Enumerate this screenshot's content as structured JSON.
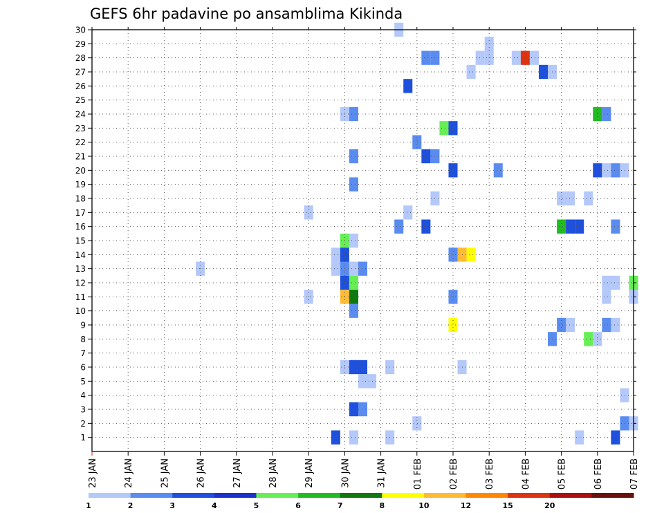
{
  "chart_data": {
    "type": "heatmap",
    "title": "GEFS 6hr padavine po ansamblima Kikinda",
    "xlabel": "",
    "ylabel": "",
    "x_range": [
      "23 JAN",
      "07 FEB"
    ],
    "x_step_hours": 6,
    "y_range": [
      0,
      30
    ],
    "x_tick_labels": [
      "23 JAN",
      "24 JAN",
      "25 JAN",
      "26 JAN",
      "27 JAN",
      "28 JAN",
      "29 JAN",
      "30 JAN",
      "31 JAN",
      "01 FEB",
      "02 FEB",
      "03 FEB",
      "04 FEB",
      "05 FEB",
      "06 FEB",
      "07 FEB"
    ],
    "y_tick_labels": [
      "1",
      "2",
      "3",
      "4",
      "5",
      "6",
      "7",
      "8",
      "9",
      "10",
      "11",
      "12",
      "13",
      "14",
      "15",
      "16",
      "17",
      "18",
      "19",
      "20",
      "21",
      "22",
      "23",
      "24",
      "25",
      "26",
      "27",
      "28",
      "29",
      "30"
    ],
    "grid": true,
    "legend": {
      "position": "bottom",
      "levels": [
        "1",
        "2",
        "3",
        "4",
        "5",
        "6",
        "7",
        "8",
        "10",
        "12",
        "15",
        "20"
      ],
      "colors": [
        "#b4c8fa",
        "#5a8cf0",
        "#1e50dc",
        "#1e32c8",
        "#66ee55",
        "#22bb22",
        "#117711",
        "#ffff00",
        "#ffbb33",
        "#ff8800",
        "#dd3311",
        "#aa1111",
        "#6b0f0f"
      ]
    },
    "cells": [
      {
        "time": "31 JAN 12Z",
        "member": 30,
        "level": 1
      },
      {
        "time": "03 FEB 00Z",
        "member": 29,
        "level": 1
      },
      {
        "time": "01 FEB 06Z",
        "member": 28,
        "level": 2
      },
      {
        "time": "01 FEB 12Z",
        "member": 28,
        "level": 2
      },
      {
        "time": "02 FEB 18Z",
        "member": 28,
        "level": 1
      },
      {
        "time": "03 FEB 00Z",
        "member": 28,
        "level": 1
      },
      {
        "time": "03 FEB 18Z",
        "member": 28,
        "level": 1
      },
      {
        "time": "04 FEB 00Z",
        "member": 28,
        "level": 15
      },
      {
        "time": "04 FEB 06Z",
        "member": 28,
        "level": 1
      },
      {
        "time": "02 FEB 12Z",
        "member": 27,
        "level": 1
      },
      {
        "time": "04 FEB 12Z",
        "member": 27,
        "level": 3
      },
      {
        "time": "04 FEB 18Z",
        "member": 27,
        "level": 1
      },
      {
        "time": "31 JAN 18Z",
        "member": 26,
        "level": 3
      },
      {
        "time": "30 JAN 00Z",
        "member": 24,
        "level": 1
      },
      {
        "time": "30 JAN 06Z",
        "member": 24,
        "level": 2
      },
      {
        "time": "06 FEB 00Z",
        "member": 24,
        "level": 6
      },
      {
        "time": "06 FEB 06Z",
        "member": 24,
        "level": 2
      },
      {
        "time": "01 FEB 18Z",
        "member": 23,
        "level": 5
      },
      {
        "time": "02 FEB 00Z",
        "member": 23,
        "level": 3
      },
      {
        "time": "01 FEB 00Z",
        "member": 22,
        "level": 2
      },
      {
        "time": "30 JAN 06Z",
        "member": 21,
        "level": 2
      },
      {
        "time": "01 FEB 06Z",
        "member": 21,
        "level": 3
      },
      {
        "time": "01 FEB 12Z",
        "member": 21,
        "level": 2
      },
      {
        "time": "02 FEB 00Z",
        "member": 20,
        "level": 3
      },
      {
        "time": "03 FEB 06Z",
        "member": 20,
        "level": 2
      },
      {
        "time": "06 FEB 00Z",
        "member": 20,
        "level": 3
      },
      {
        "time": "06 FEB 06Z",
        "member": 20,
        "level": 1
      },
      {
        "time": "06 FEB 12Z",
        "member": 20,
        "level": 2
      },
      {
        "time": "06 FEB 18Z",
        "member": 20,
        "level": 1
      },
      {
        "time": "30 JAN 06Z",
        "member": 19,
        "level": 2
      },
      {
        "time": "01 FEB 12Z",
        "member": 18,
        "level": 1
      },
      {
        "time": "05 FEB 00Z",
        "member": 18,
        "level": 1
      },
      {
        "time": "05 FEB 06Z",
        "member": 18,
        "level": 1
      },
      {
        "time": "05 FEB 18Z",
        "member": 18,
        "level": 1
      },
      {
        "time": "29 JAN 00Z",
        "member": 17,
        "level": 1
      },
      {
        "time": "31 JAN 18Z",
        "member": 17,
        "level": 1
      },
      {
        "time": "31 JAN 12Z",
        "member": 16,
        "level": 2
      },
      {
        "time": "01 FEB 06Z",
        "member": 16,
        "level": 3
      },
      {
        "time": "05 FEB 00Z",
        "member": 16,
        "level": 6
      },
      {
        "time": "05 FEB 06Z",
        "member": 16,
        "level": 3
      },
      {
        "time": "05 FEB 12Z",
        "member": 16,
        "level": 3
      },
      {
        "time": "06 FEB 12Z",
        "member": 16,
        "level": 2
      },
      {
        "time": "30 JAN 00Z",
        "member": 15,
        "level": 5
      },
      {
        "time": "30 JAN 06Z",
        "member": 15,
        "level": 1
      },
      {
        "time": "29 JAN 18Z",
        "member": 14,
        "level": 1
      },
      {
        "time": "30 JAN 00Z",
        "member": 14,
        "level": 3
      },
      {
        "time": "02 FEB 00Z",
        "member": 14,
        "level": 2
      },
      {
        "time": "02 FEB 06Z",
        "member": 14,
        "level": 10
      },
      {
        "time": "02 FEB 12Z",
        "member": 14,
        "level": 8
      },
      {
        "time": "26 JAN 00Z",
        "member": 13,
        "level": 1
      },
      {
        "time": "29 JAN 18Z",
        "member": 13,
        "level": 1
      },
      {
        "time": "30 JAN 00Z",
        "member": 13,
        "level": 2
      },
      {
        "time": "30 JAN 06Z",
        "member": 13,
        "level": 1
      },
      {
        "time": "30 JAN 12Z",
        "member": 13,
        "level": 2
      },
      {
        "time": "30 JAN 00Z",
        "member": 12,
        "level": 3
      },
      {
        "time": "30 JAN 06Z",
        "member": 12,
        "level": 5
      },
      {
        "time": "06 FEB 06Z",
        "member": 12,
        "level": 1
      },
      {
        "time": "06 FEB 12Z",
        "member": 12,
        "level": 1
      },
      {
        "time": "07 FEB 00Z",
        "member": 12,
        "level": 5
      },
      {
        "time": "29 JAN 00Z",
        "member": 11,
        "level": 1
      },
      {
        "time": "30 JAN 00Z",
        "member": 11,
        "level": 10
      },
      {
        "time": "30 JAN 06Z",
        "member": 11,
        "level": 7
      },
      {
        "time": "02 FEB 00Z",
        "member": 11,
        "level": 2
      },
      {
        "time": "06 FEB 06Z",
        "member": 11,
        "level": 1
      },
      {
        "time": "07 FEB 00Z",
        "member": 11,
        "level": 1
      },
      {
        "time": "30 JAN 06Z",
        "member": 10,
        "level": 2
      },
      {
        "time": "02 FEB 00Z",
        "member": 9,
        "level": 8
      },
      {
        "time": "05 FEB 00Z",
        "member": 9,
        "level": 2
      },
      {
        "time": "05 FEB 06Z",
        "member": 9,
        "level": 1
      },
      {
        "time": "06 FEB 06Z",
        "member": 9,
        "level": 2
      },
      {
        "time": "06 FEB 12Z",
        "member": 9,
        "level": 1
      },
      {
        "time": "04 FEB 18Z",
        "member": 8,
        "level": 2
      },
      {
        "time": "05 FEB 18Z",
        "member": 8,
        "level": 5
      },
      {
        "time": "06 FEB 00Z",
        "member": 8,
        "level": 1
      },
      {
        "time": "30 JAN 00Z",
        "member": 6,
        "level": 1
      },
      {
        "time": "30 JAN 06Z",
        "member": 6,
        "level": 3
      },
      {
        "time": "30 JAN 12Z",
        "member": 6,
        "level": 3
      },
      {
        "time": "31 JAN 06Z",
        "member": 6,
        "level": 1
      },
      {
        "time": "02 FEB 06Z",
        "member": 6,
        "level": 1
      },
      {
        "time": "30 JAN 12Z",
        "member": 5,
        "level": 1
      },
      {
        "time": "30 JAN 18Z",
        "member": 5,
        "level": 1
      },
      {
        "time": "06 FEB 18Z",
        "member": 4,
        "level": 1
      },
      {
        "time": "30 JAN 06Z",
        "member": 3,
        "level": 3
      },
      {
        "time": "30 JAN 12Z",
        "member": 3,
        "level": 2
      },
      {
        "time": "01 FEB 00Z",
        "member": 2,
        "level": 1
      },
      {
        "time": "06 FEB 18Z",
        "member": 2,
        "level": 2
      },
      {
        "time": "07 FEB 00Z",
        "member": 2,
        "level": 1
      },
      {
        "time": "29 JAN 18Z",
        "member": 1,
        "level": 3
      },
      {
        "time": "30 JAN 06Z",
        "member": 1,
        "level": 1
      },
      {
        "time": "31 JAN 06Z",
        "member": 1,
        "level": 1
      },
      {
        "time": "05 FEB 12Z",
        "member": 1,
        "level": 1
      },
      {
        "time": "06 FEB 12Z",
        "member": 1,
        "level": 3
      }
    ]
  }
}
